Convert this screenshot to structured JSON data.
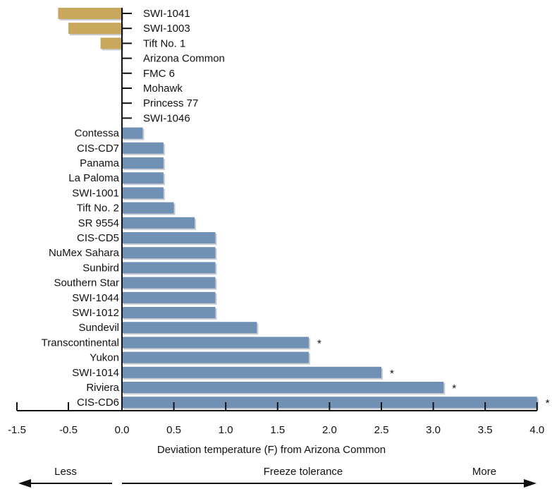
{
  "chart_data": {
    "type": "bar",
    "orientation": "horizontal",
    "xlabel": "Deviation temperature (F) from Arizona Common",
    "xlim": [
      -1.5,
      4.0
    ],
    "x_ticks": [
      "-1.5",
      "-0.5",
      "0.0",
      "0.5",
      "1.0",
      "1.5",
      "2.0",
      "2.5",
      "3.0",
      "3.5",
      "4.0"
    ],
    "categories": [
      "SWI-1041",
      "SWI-1003",
      "Tift No. 1",
      "Arizona Common",
      "FMC 6",
      "Mohawk",
      "Princess 77",
      "SWI-1046",
      "Contessa",
      "CIS-CD7",
      "Panama",
      "La Paloma",
      "SWI-1001",
      "Tift No. 2",
      "SR 9554",
      "CIS-CD5",
      "NuMex Sahara",
      "Sunbird",
      "Southern Star",
      "SWI-1044",
      "SWI-1012",
      "Sundevil",
      "Transcontinental",
      "Yukon",
      "SWI-1014",
      "Riviera",
      "CIS-CD6"
    ],
    "values": [
      -0.7,
      -0.5,
      -0.2,
      0.0,
      0.0,
      0.0,
      0.0,
      0.0,
      0.2,
      0.4,
      0.4,
      0.4,
      0.4,
      0.5,
      0.7,
      0.9,
      0.9,
      0.9,
      0.9,
      0.9,
      0.9,
      1.3,
      1.8,
      1.8,
      2.5,
      3.1,
      4.0
    ],
    "significant_marker": "*",
    "significant": [
      "Transcontinental",
      "SWI-1014",
      "Riviera",
      "CIS-CD6"
    ],
    "colors": {
      "positive": "#7090b4",
      "negative": "#c8a85c",
      "axis": "#111111"
    },
    "grid": false
  },
  "footer": {
    "less_label": "Less",
    "middle_label": "Freeze tolerance",
    "more_label": "More"
  }
}
